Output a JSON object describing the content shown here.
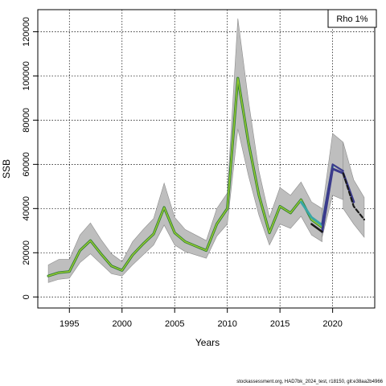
{
  "chart_data": {
    "type": "line",
    "xlabel": "Years",
    "ylabel": "SSB",
    "xlim": [
      1992,
      2024
    ],
    "ylim": [
      -5000,
      130000
    ],
    "xticks": [
      1995,
      2000,
      2005,
      2010,
      2015,
      2020
    ],
    "yticks": [
      0,
      20000,
      40000,
      60000,
      80000,
      100000,
      120000
    ],
    "grid": true,
    "legend_position": "top-right",
    "legend_text": "Rho 1%",
    "footer_text": "stockassessment.org, HAD7bk_2024_test, r18150, git:e38aa2b4966",
    "colors": {
      "band": "#bebebe",
      "main": "#2e7d32",
      "main_inner": "#9acd32",
      "peel_1": "#39a6a6",
      "peel_2": "#3b3b8c",
      "peel_3": "#1a1a1a"
    },
    "series": [
      {
        "x": [
          1993,
          1994,
          1995,
          1996,
          1997,
          1998,
          1999,
          2000,
          2001,
          2002,
          2003,
          2004,
          2005,
          2006,
          2007,
          2008,
          2009,
          2010,
          2011,
          2012,
          2013,
          2014,
          2015,
          2016,
          2017,
          2018,
          2019
        ],
        "y": [
          9500,
          11000,
          11500,
          21000,
          25500,
          19500,
          14000,
          12000,
          19000,
          24000,
          28500,
          40500,
          29000,
          25000,
          23000,
          21000,
          33000,
          40000,
          99000,
          70000,
          46000,
          29000,
          41000,
          38000,
          44000,
          35000,
          31500
        ],
        "lower": [
          6500,
          8000,
          8500,
          15500,
          19500,
          15000,
          10500,
          9500,
          14500,
          19000,
          23500,
          32500,
          23500,
          20500,
          19000,
          17500,
          27500,
          33000,
          76000,
          55000,
          37000,
          23500,
          33000,
          31000,
          36500,
          28000,
          25000
        ],
        "upper": [
          14500,
          17000,
          17000,
          28000,
          33500,
          26000,
          19500,
          16000,
          25000,
          30500,
          35500,
          51500,
          36000,
          30500,
          28000,
          25500,
          40000,
          47000,
          126000,
          89000,
          57000,
          36000,
          49500,
          46000,
          52000,
          43000,
          40000
        ]
      },
      {
        "x": [
          2017,
          2018,
          2019,
          2020
        ],
        "y": [
          43000,
          36000,
          32500,
          59000
        ],
        "lower": [],
        "upper": []
      },
      {
        "x": [
          2019,
          2020,
          2021,
          2022
        ],
        "y": [
          29500,
          58000,
          56000,
          43000
        ],
        "lower": [],
        "upper": []
      },
      {
        "x": [
          2018,
          2019
        ],
        "y": [
          33000,
          29500
        ],
        "lower": [],
        "upper": []
      },
      {
        "x": [
          2021,
          2022,
          2023
        ],
        "y": [
          56000,
          41000,
          35000
        ],
        "lower": [
          40000,
          33000,
          27000
        ],
        "upper": [
          70000,
          53000,
          45000
        ]
      },
      {
        "x": [
          2019,
          2020,
          2021
        ],
        "y": [
          33000,
          60000,
          57000
        ],
        "lower": [
          27000,
          46000,
          44000
        ],
        "upper": [
          39000,
          74000,
          70000
        ]
      }
    ]
  }
}
